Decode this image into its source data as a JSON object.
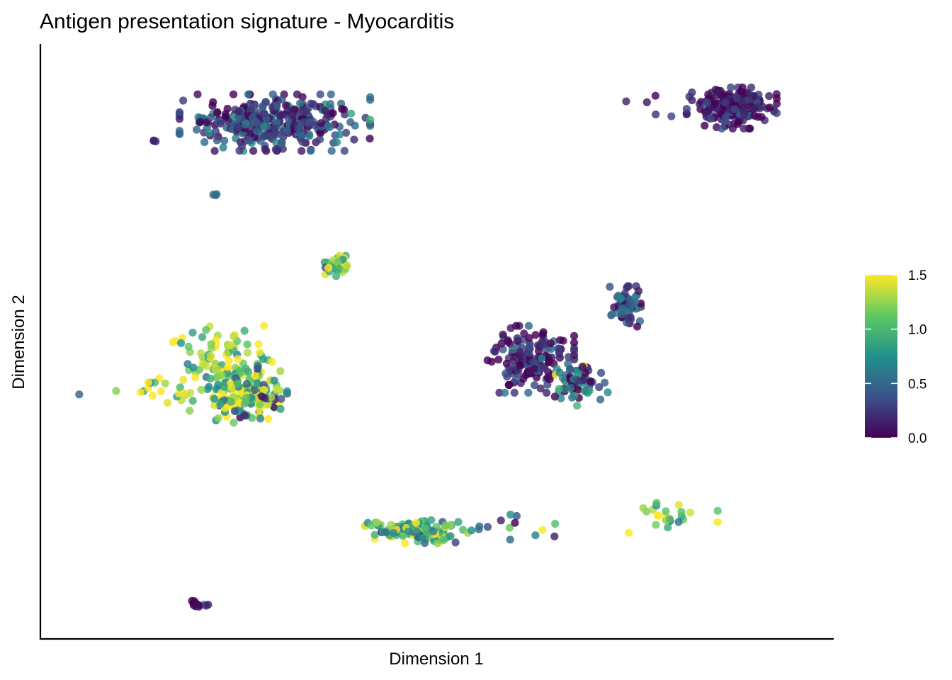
{
  "chart_data": {
    "type": "scatter",
    "title": "Antigen presentation signature - Myocarditis",
    "xlabel": "Dimension 1",
    "ylabel": "Dimension 2",
    "xlim": [
      0,
      100
    ],
    "ylim": [
      0,
      100
    ],
    "x_ticks_shown": false,
    "y_ticks_shown": false,
    "grid": false,
    "colorbar": {
      "palette": "viridis",
      "stops": [
        "#440154",
        "#3b528b",
        "#21918c",
        "#5ec962",
        "#fde725"
      ],
      "min": 0.0,
      "max": 1.5,
      "ticks": [
        {
          "value": 0.0,
          "label": "0.0"
        },
        {
          "value": 0.5,
          "label": "0.5"
        },
        {
          "value": 1.0,
          "label": "1.0"
        },
        {
          "value": 1.5,
          "label": "1.5"
        }
      ],
      "placement": "right"
    },
    "clusters": [
      {
        "cx": 29.5,
        "cy": 87.5,
        "sx": 5.5,
        "sy": 2.2,
        "n": 330,
        "mean": 0.3,
        "spread": 0.28,
        "seed": 11
      },
      {
        "cx": 87.5,
        "cy": 90.0,
        "sx": 2.6,
        "sy": 1.6,
        "n": 180,
        "mean": 0.12,
        "spread": 0.18,
        "seed": 23
      },
      {
        "cx": 84.0,
        "cy": 90.0,
        "sx": 4.5,
        "sy": 1.4,
        "n": 18,
        "mean": 0.15,
        "spread": 0.15,
        "seed": 29
      },
      {
        "cx": 22.5,
        "cy": 47.0,
        "sx": 3.5,
        "sy": 2.6,
        "n": 80,
        "mean": 1.3,
        "spread": 0.35,
        "seed": 31
      },
      {
        "cx": 26.0,
        "cy": 41.0,
        "sx": 2.3,
        "sy": 2.2,
        "n": 170,
        "mean": 1.05,
        "spread": 0.45,
        "seed": 37
      },
      {
        "cx": 15.5,
        "cy": 41.5,
        "sx": 2.8,
        "sy": 1.5,
        "n": 22,
        "mean": 1.3,
        "spread": 0.3,
        "seed": 41
      },
      {
        "cx": 37.5,
        "cy": 63.0,
        "sx": 1.0,
        "sy": 0.8,
        "n": 40,
        "mean": 1.1,
        "spread": 0.35,
        "seed": 43
      },
      {
        "cx": 62.0,
        "cy": 47.0,
        "sx": 2.5,
        "sy": 2.6,
        "n": 150,
        "mean": 0.15,
        "spread": 0.25,
        "seed": 47
      },
      {
        "cx": 68.0,
        "cy": 43.0,
        "sx": 2.0,
        "sy": 2.0,
        "n": 70,
        "mean": 0.5,
        "spread": 0.45,
        "seed": 53
      },
      {
        "cx": 74.0,
        "cy": 56.0,
        "sx": 0.9,
        "sy": 1.6,
        "n": 60,
        "mean": 0.3,
        "spread": 0.3,
        "seed": 59
      },
      {
        "cx": 48.0,
        "cy": 17.5,
        "sx": 3.2,
        "sy": 0.9,
        "n": 130,
        "mean": 0.95,
        "spread": 0.4,
        "seed": 61
      },
      {
        "cx": 59.0,
        "cy": 17.8,
        "sx": 3.5,
        "sy": 1.2,
        "n": 14,
        "mean": 0.8,
        "spread": 0.5,
        "seed": 67
      },
      {
        "cx": 80.0,
        "cy": 20.0,
        "sx": 2.6,
        "sy": 1.3,
        "n": 24,
        "mean": 1.2,
        "spread": 0.35,
        "seed": 71
      },
      {
        "cx": 20.0,
        "cy": 5.0,
        "sx": 0.6,
        "sy": 0.4,
        "n": 14,
        "mean": 0.15,
        "spread": 0.2,
        "seed": 73
      },
      {
        "cx": 21.9,
        "cy": 75.2,
        "sx": 0.15,
        "sy": 0.1,
        "n": 3,
        "mean": 0.55,
        "spread": 0.05,
        "seed": 79
      },
      {
        "cx": 4.6,
        "cy": 41.0,
        "sx": 0.1,
        "sy": 0.1,
        "n": 1,
        "mean": 0.5,
        "spread": 0.05,
        "seed": 83
      },
      {
        "cx": 14.3,
        "cy": 84.3,
        "sx": 0.2,
        "sy": 0.1,
        "n": 3,
        "mean": 0.2,
        "spread": 0.05,
        "seed": 89
      }
    ]
  }
}
